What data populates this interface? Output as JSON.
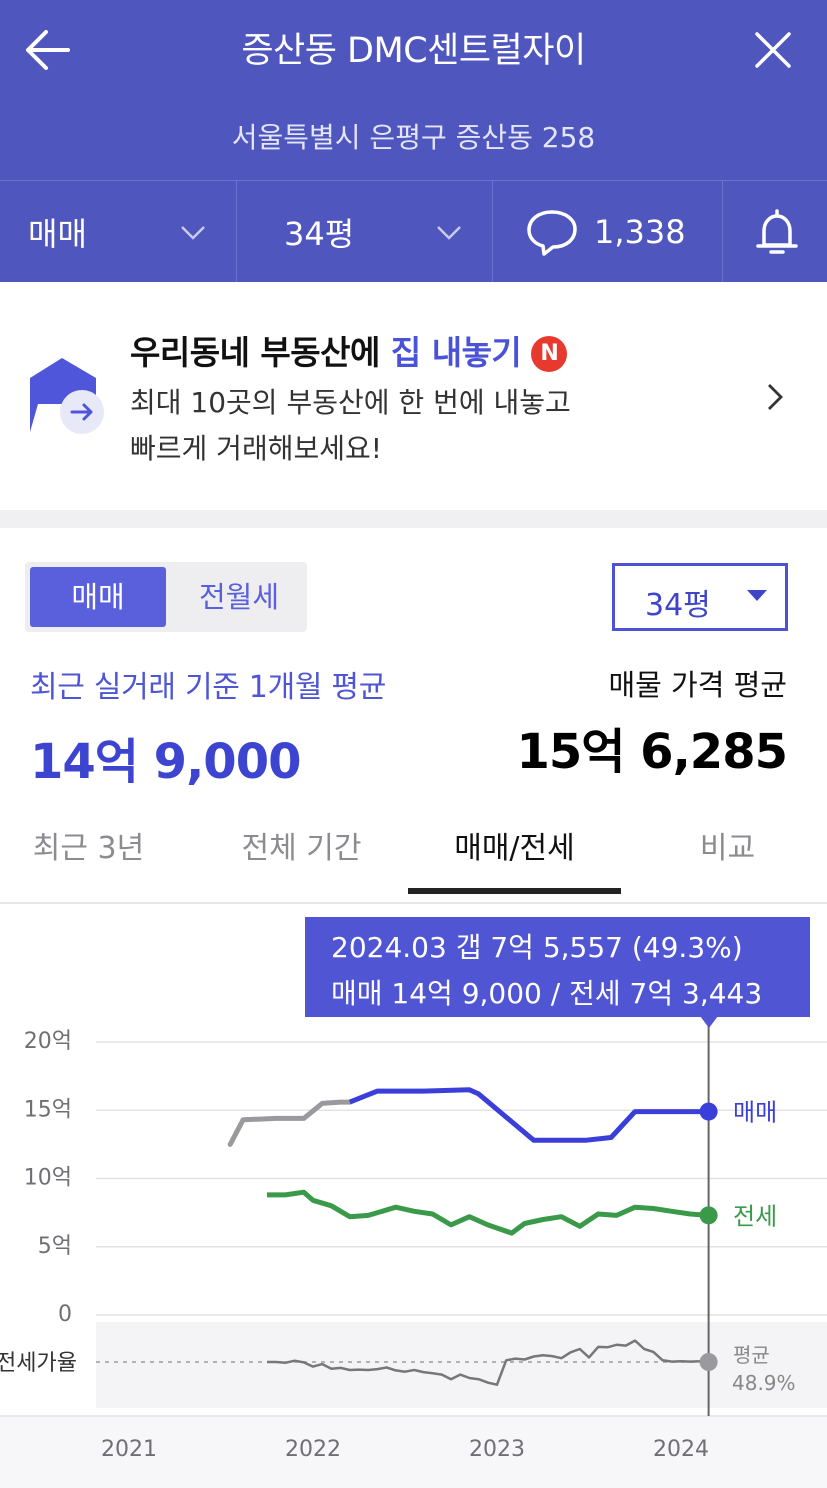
{
  "header": {
    "title": "증산동 DMC센트럴자이",
    "address": "서울특별시 은평구 증산동 258",
    "trade_type": "매매",
    "size": "34평",
    "comment_count": "1,338"
  },
  "promo": {
    "title_prefix": "우리동네 부동산에 ",
    "title_highlight": "집 내놓기",
    "badge": "N",
    "desc_line1": "최대 10곳의 부동산에 한 번에 내놓고",
    "desc_line2": "빠르게 거래해보세요!"
  },
  "summary": {
    "segment": [
      "매매",
      "전월세"
    ],
    "size_select": "34평",
    "avg_label": "최근 실거래 기준 1개월 평균",
    "avg_value": "14억 9,000",
    "ask_label": "매물 가격 평균",
    "ask_value": "15억 6,285"
  },
  "tabs": [
    "최근 3년",
    "전체 기간",
    "매매/전세",
    "비교"
  ],
  "tooltip": {
    "line1": "2024.03  갭 7억 5,557 (49.3%)",
    "line2": "매매 14억 9,000 / 전세 7억 3,443"
  },
  "chart_data": {
    "type": "line",
    "ylabel_ticks": [
      "20억",
      "15억",
      "10억",
      "5억",
      "0"
    ],
    "y_ticks": [
      20,
      15,
      10,
      5,
      0
    ],
    "ylim": [
      0,
      20
    ],
    "x_ticks": [
      "2021",
      "2022",
      "2023",
      "2024"
    ],
    "ratio_label": "전세가율",
    "avg_label": "평균",
    "avg_value": "48.9%",
    "series": [
      {
        "name": "매매",
        "color": "#3b3fd9",
        "x": [
          2021.55,
          2021.62,
          2021.8,
          2021.95,
          2022.05,
          2022.15,
          2022.2,
          2022.35,
          2022.6,
          2022.85,
          2022.9,
          2023.2,
          2023.35,
          2023.48,
          2023.62,
          2023.75,
          2024.15
        ],
        "values": [
          12.5,
          14.3,
          14.4,
          14.4,
          15.5,
          15.6,
          15.6,
          16.4,
          16.4,
          16.5,
          16.2,
          12.8,
          12.8,
          12.8,
          13.0,
          14.9,
          14.9
        ]
      },
      {
        "name": "전세",
        "color": "#3a9a4a",
        "x": [
          2021.75,
          2021.85,
          2021.95,
          2022.0,
          2022.1,
          2022.2,
          2022.3,
          2022.45,
          2022.55,
          2022.65,
          2022.75,
          2022.85,
          2022.95,
          2023.08,
          2023.15,
          2023.25,
          2023.35,
          2023.45,
          2023.55,
          2023.65,
          2023.75,
          2023.85,
          2023.95,
          2024.05,
          2024.15
        ],
        "values": [
          8.8,
          8.8,
          9.0,
          8.4,
          8.0,
          7.2,
          7.3,
          7.9,
          7.6,
          7.4,
          6.6,
          7.2,
          6.6,
          6.0,
          6.7,
          7.0,
          7.2,
          6.5,
          7.4,
          7.3,
          7.9,
          7.8,
          7.6,
          7.4,
          7.3
        ]
      },
      {
        "name": "전세가율",
        "color": "#777777",
        "x": [
          2021.75,
          2021.8,
          2021.85,
          2021.9,
          2021.95,
          2022.0,
          2022.05,
          2022.1,
          2022.15,
          2022.2,
          2022.25,
          2022.3,
          2022.35,
          2022.4,
          2022.45,
          2022.5,
          2022.55,
          2022.6,
          2022.65,
          2022.7,
          2022.75,
          2022.8,
          2022.85,
          2022.9,
          2022.95,
          2023.0,
          2023.05,
          2023.1,
          2023.15,
          2023.2,
          2023.25,
          2023.3,
          2023.35,
          2023.4,
          2023.45,
          2023.5,
          2023.55,
          2023.6,
          2023.65,
          2023.7,
          2023.75,
          2023.8,
          2023.85,
          2023.9,
          2023.95,
          2024.0,
          2024.05,
          2024.1,
          2024.15
        ],
        "values": [
          48.9,
          48.9,
          48.7,
          49.2,
          48.8,
          47.8,
          48.4,
          47.3,
          47.5,
          47.0,
          47.1,
          47.0,
          47.2,
          47.6,
          46.9,
          46.6,
          47.0,
          46.5,
          46.2,
          45.9,
          44.8,
          45.9,
          45.1,
          44.8,
          44.0,
          43.5,
          49.3,
          49.7,
          49.5,
          50.2,
          50.5,
          50.3,
          49.8,
          51.2,
          52.0,
          50.0,
          52.5,
          52.4,
          53.0,
          52.8,
          54.0,
          52.0,
          51.3,
          49.3,
          49.0,
          49.1,
          49.0,
          49.1,
          49.3
        ]
      }
    ]
  }
}
